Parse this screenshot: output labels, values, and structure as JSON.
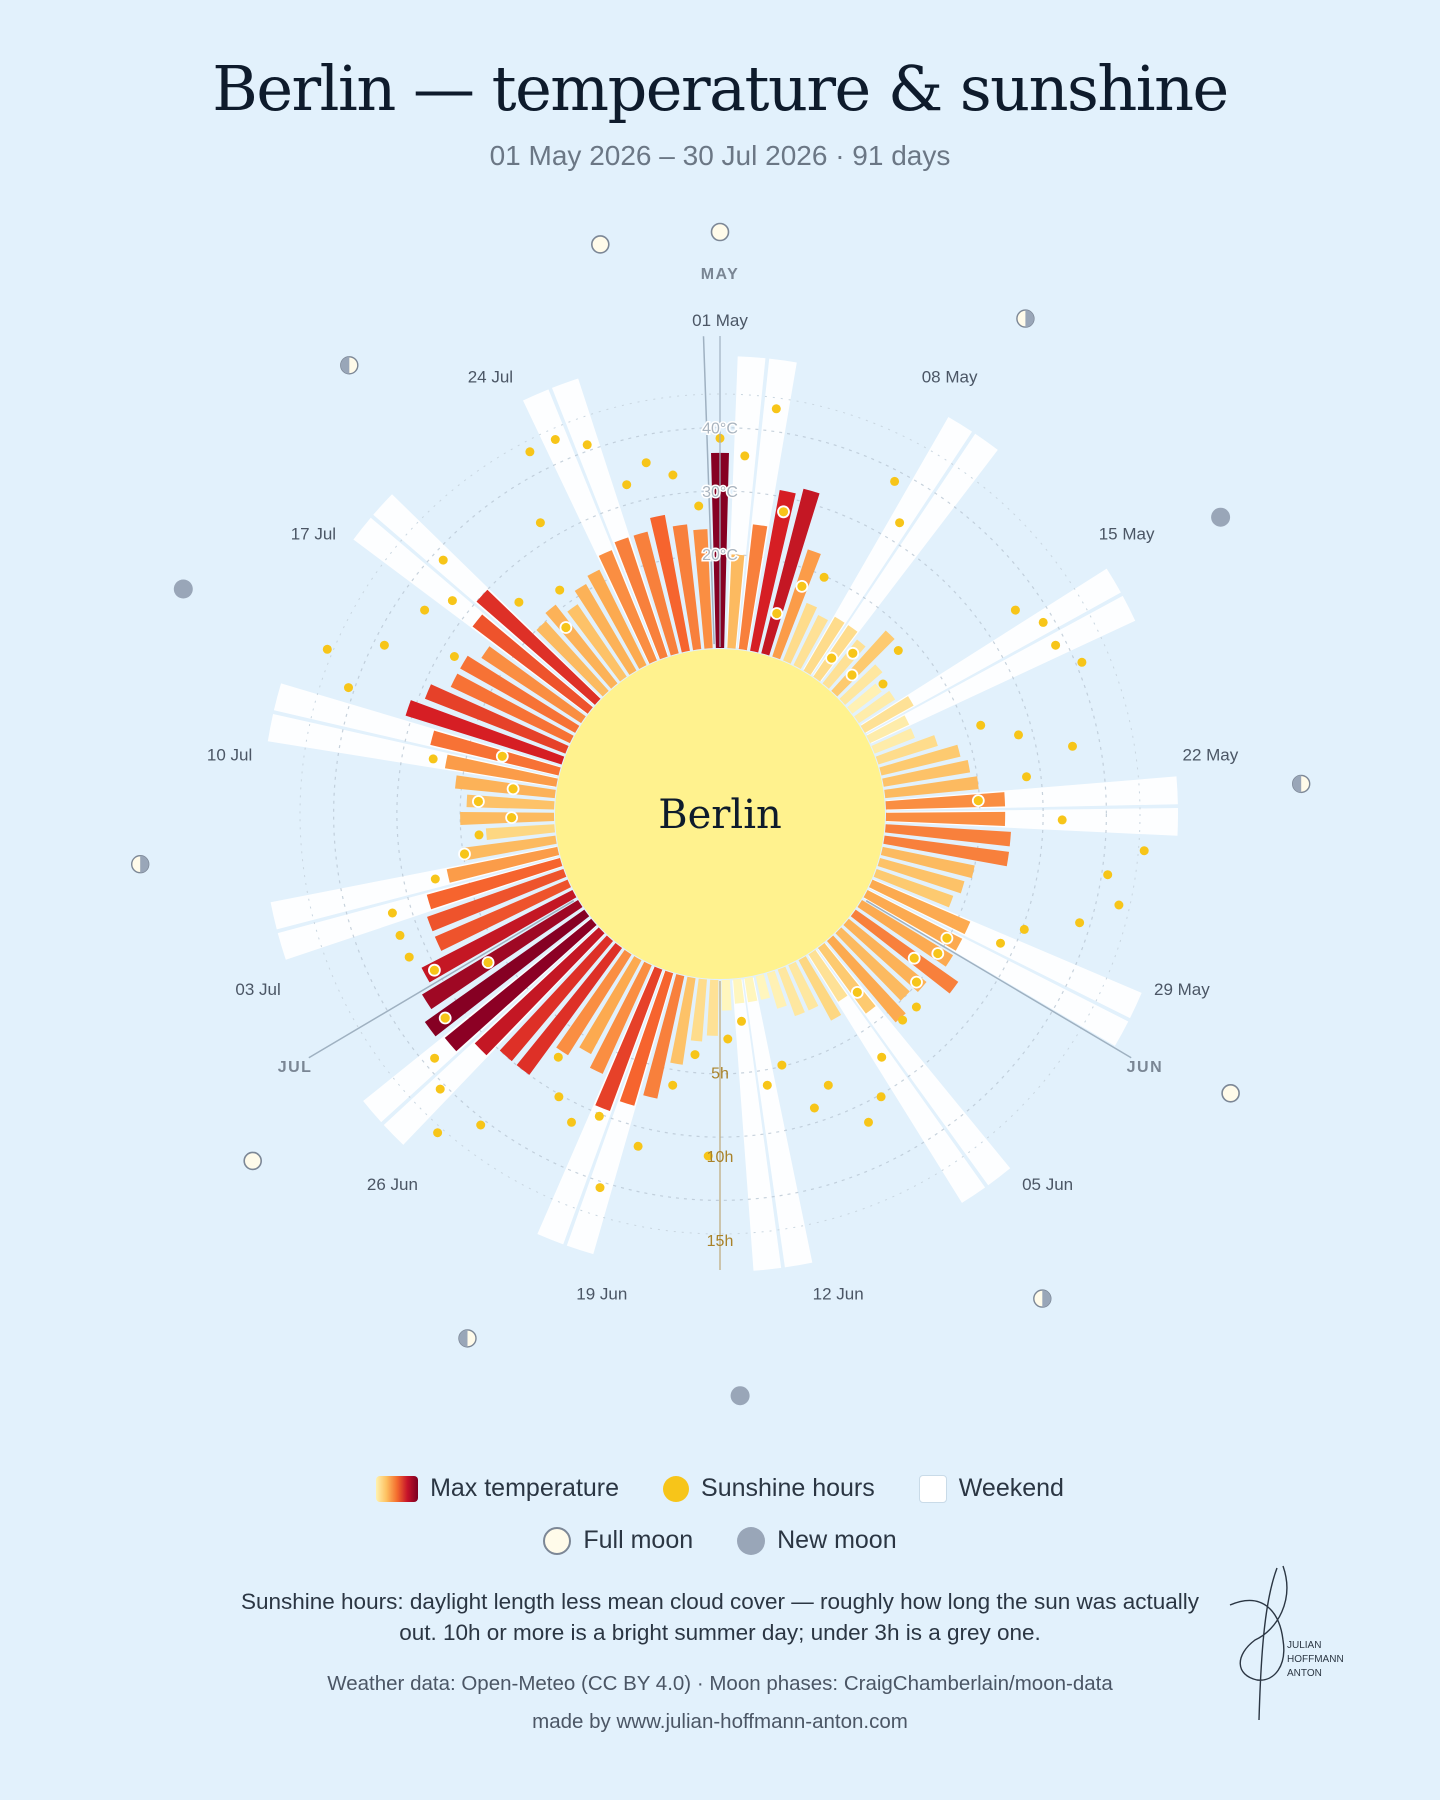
{
  "header": {
    "title": "Berlin — temperature & sunshine",
    "subtitle": "01 May 2026 – 30 Jul 2026 · 91 days"
  },
  "center_label": "Berlin",
  "chart_data": {
    "type": "radial-bar",
    "title": "Berlin — temperature & sunshine",
    "start_date": "01 May 2026",
    "end_date": "30 Jul 2026",
    "days": 91,
    "temperature_ticks": [
      "20°C",
      "30°C",
      "40°C"
    ],
    "temperature_tick_values": [
      20,
      30,
      40
    ],
    "temperature_range": [
      5,
      45
    ],
    "sunshine_ticks": [
      "5h",
      "10h",
      "15h"
    ],
    "sunshine_tick_values": [
      5,
      10,
      15
    ],
    "sunshine_range": [
      0,
      18
    ],
    "month_labels": [
      {
        "label": "MAY",
        "day_index": 0
      },
      {
        "label": "JUN",
        "day_index": 31
      },
      {
        "label": "JUL",
        "day_index": 61
      }
    ],
    "date_labels": [
      {
        "label": "01 May",
        "day_index": 0
      },
      {
        "label": "08 May",
        "day_index": 7
      },
      {
        "label": "15 May",
        "day_index": 14
      },
      {
        "label": "22 May",
        "day_index": 21
      },
      {
        "label": "29 May",
        "day_index": 28
      },
      {
        "label": "05 Jun",
        "day_index": 35
      },
      {
        "label": "12 Jun",
        "day_index": 42
      },
      {
        "label": "19 Jun",
        "day_index": 49
      },
      {
        "label": "26 Jun",
        "day_index": 56
      },
      {
        "label": "03 Jul",
        "day_index": 63
      },
      {
        "label": "10 Jul",
        "day_index": 70
      },
      {
        "label": "17 Jul",
        "day_index": 77
      },
      {
        "label": "24 Jul",
        "day_index": 84
      }
    ],
    "max_temperature_c": [
      36,
      20,
      25,
      31,
      32,
      23,
      15,
      14,
      15,
      15,
      14,
      18,
      13,
      11,
      12,
      14,
      12,
      12,
      15,
      18,
      19,
      20,
      24,
      24,
      25,
      25,
      20,
      19,
      18,
      22,
      22,
      22,
      25,
      21,
      20,
      22,
      18,
      14,
      16,
      13,
      13,
      11,
      9,
      9,
      9,
      10,
      14,
      15,
      19,
      25,
      27,
      29,
      24,
      22,
      24,
      30,
      30,
      32,
      35,
      36,
      34,
      32,
      28,
      28,
      27,
      23,
      20,
      16,
      20,
      19,
      21,
      23,
      26,
      31,
      29,
      26,
      26,
      24,
      28,
      30,
      20,
      21,
      19,
      21,
      22,
      24,
      25,
      25,
      27,
      25,
      24
    ],
    "sunshine_hours": [
      12,
      11,
      14,
      8,
      2,
      4,
      5,
      12,
      10,
      1,
      2,
      1,
      4,
      2,
      11,
      12,
      12,
      13,
      6,
      8,
      11,
      8,
      5,
      10,
      15,
      13,
      14,
      12,
      9,
      8,
      5,
      5,
      4,
      5,
      6,
      6,
      3,
      7,
      9,
      10,
      7,
      8,
      5,
      6,
      2,
      3,
      10,
      4,
      6,
      10,
      13,
      9,
      10,
      9,
      7,
      13,
      15,
      13,
      12,
      10,
      6,
      9,
      10,
      10,
      10,
      7,
      5,
      4,
      2,
      4,
      2,
      7,
      3,
      13,
      15,
      12,
      8,
      11,
      10,
      12,
      7,
      4,
      6,
      10,
      14,
      14,
      13,
      10,
      11,
      10,
      8
    ],
    "weekend_day_indices": [
      1,
      2,
      8,
      9,
      15,
      16,
      22,
      23,
      29,
      30,
      36,
      37,
      43,
      44,
      50,
      51,
      57,
      58,
      64,
      65,
      71,
      72,
      78,
      79,
      85,
      86
    ],
    "full_moon_day_indices": [
      0,
      30,
      59,
      88
    ],
    "new_moon_day_indices": [
      15,
      45,
      74
    ],
    "half_moon_day_indices": [
      8,
      22,
      37,
      52,
      67,
      81
    ]
  },
  "legend": {
    "max_temperature": "Max temperature",
    "sunshine_hours": "Sunshine hours",
    "weekend": "Weekend",
    "full_moon": "Full moon",
    "new_moon": "New moon"
  },
  "footer": {
    "note": "Sunshine hours: daylight length less mean cloud cover — roughly how long the sun was actually out. 10h or more is a bright summer day; under 3h is a grey one.",
    "sources": "Weather data: Open-Meteo (CC BY 4.0) · Moon phases: CraigChamberlain/moon-data",
    "made_by": "made by www.julian-hoffmann-anton.com"
  },
  "signature": {
    "line1": "JULIAN",
    "line2": "HOFFMANN",
    "line3": "ANTON"
  },
  "colors": {
    "background": "#e2f1fc",
    "sun_disk": "#fff28e",
    "sunshine_dot": "#f7c519",
    "weekend_band": "#ffffff",
    "new_moon": "#99a6b8",
    "full_moon": "#fffbea"
  }
}
